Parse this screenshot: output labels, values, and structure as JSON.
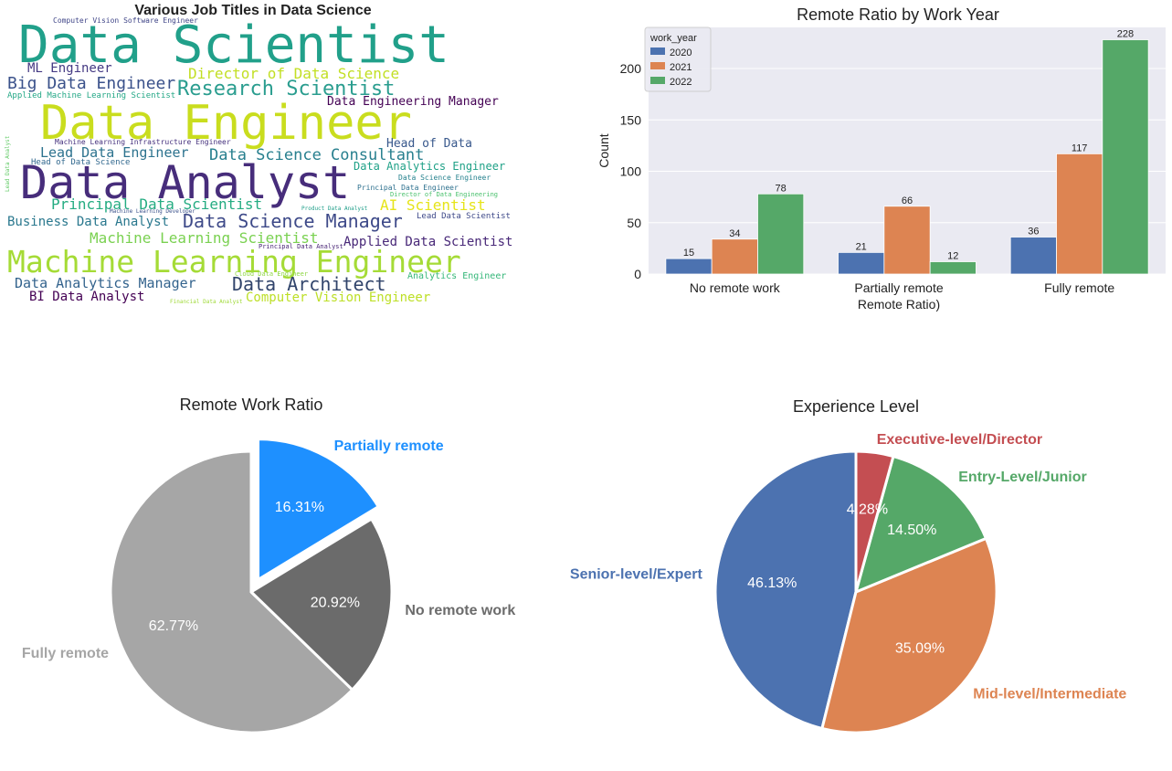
{
  "chart_data": [
    {
      "type": "wordcloud",
      "title": "Various Job Titles in Data Science",
      "words": [
        {
          "text": "Data Scientist",
          "color": "#21a08a"
        },
        {
          "text": "Data Engineer",
          "color": "#c9dd1e"
        },
        {
          "text": "Data Analyst",
          "color": "#472d7b"
        },
        {
          "text": "Machine Learning Engineer",
          "color": "#a5db36"
        },
        {
          "text": "Research Scientist",
          "color": "#2a9d8f"
        },
        {
          "text": "Data Science Manager",
          "color": "#3e4a89"
        },
        {
          "text": "Data Architect",
          "color": "#31446b"
        },
        {
          "text": "Big Data Engineer",
          "color": "#3b528b"
        },
        {
          "text": "Director of Data Science",
          "color": "#c2df23"
        },
        {
          "text": "Data Science Consultant",
          "color": "#277f8e"
        },
        {
          "text": "Principal Data Scientist",
          "color": "#25ac82"
        },
        {
          "text": "Machine Learning Scientist",
          "color": "#7ad151"
        },
        {
          "text": "Lead Data Engineer",
          "color": "#2c728e"
        },
        {
          "text": "Data Analytics Manager",
          "color": "#33638d"
        },
        {
          "text": "Computer Vision Engineer",
          "color": "#bddf26"
        },
        {
          "text": "BI Data Analyst",
          "color": "#440154"
        },
        {
          "text": "Business Data Analyst",
          "color": "#2a788e"
        },
        {
          "text": "Applied Data Scientist",
          "color": "#482878"
        },
        {
          "text": "ML Engineer",
          "color": "#443983"
        },
        {
          "text": "AI Scientist",
          "color": "#e6e419"
        },
        {
          "text": "Head of Data",
          "color": "#38588c"
        },
        {
          "text": "Data Engineering Manager",
          "color": "#440154"
        },
        {
          "text": "Data Analytics Engineer",
          "color": "#1fa187"
        },
        {
          "text": "Applied Machine Learning Scientist",
          "color": "#22a785"
        },
        {
          "text": "Computer Vision Software Engineer",
          "color": "#404688"
        },
        {
          "text": "Machine Learning Infrastructure Engineer",
          "color": "#46327e"
        },
        {
          "text": "Head of Data Science",
          "color": "#31688e"
        },
        {
          "text": "Lead Data Scientist",
          "color": "#3e4989"
        },
        {
          "text": "Analytics Engineer",
          "color": "#35b779"
        },
        {
          "text": "Principal Data Engineer",
          "color": "#2d708e"
        },
        {
          "text": "Data Science Engineer",
          "color": "#26828e"
        },
        {
          "text": "Director of Data Engineering",
          "color": "#4ac16d"
        },
        {
          "text": "Machine Learning Developer",
          "color": "#3b528b"
        },
        {
          "text": "Principal Data Analyst",
          "color": "#482475"
        },
        {
          "text": "Cloud Data Engineer",
          "color": "#8fd744"
        },
        {
          "text": "Financial Data Analyst",
          "color": "#a0da39"
        },
        {
          "text": "Product Data Analyst",
          "color": "#1f9e89"
        },
        {
          "text": "Lead Data Analyst",
          "color": "#5ec962"
        }
      ]
    },
    {
      "type": "bar",
      "title": "Remote Ratio by Work Year",
      "xlabel": "Partially remote\nRemote Ratio)",
      "ylabel": "Count",
      "categories": [
        "No remote work",
        "Partially remote",
        "Fully remote"
      ],
      "series": [
        {
          "name": "2020",
          "values": [
            15,
            21,
            36
          ],
          "color": "#4c72b0"
        },
        {
          "name": "2021",
          "values": [
            34,
            66,
            117
          ],
          "color": "#dd8452"
        },
        {
          "name": "2022",
          "values": [
            78,
            12,
            228
          ],
          "color": "#55a868"
        }
      ],
      "ylim": [
        0,
        240
      ],
      "yticks": [
        0,
        50,
        100,
        150,
        200
      ],
      "legend_title": "work_year",
      "legend_position": "top-left",
      "grid": true,
      "background": "#eaeaf2"
    },
    {
      "type": "pie",
      "title": "Remote Work Ratio",
      "slices": [
        {
          "label": "Fully remote",
          "value": 62.77,
          "pct": "62.77%",
          "color": "#a6a6a6",
          "explode": 0
        },
        {
          "label": "No remote work",
          "value": 20.92,
          "pct": "20.92%",
          "color": "#6b6b6b",
          "explode": 0
        },
        {
          "label": "Partially remote",
          "value": 16.31,
          "pct": "16.31%",
          "color": "#1e90ff",
          "explode": 0.1
        }
      ]
    },
    {
      "type": "pie",
      "title": "Experience Level",
      "slices": [
        {
          "label": "Executive-level/Director",
          "value": 4.28,
          "pct": "4.28%",
          "color": "#c44e52"
        },
        {
          "label": "Entry-Level/Junior",
          "value": 14.5,
          "pct": "14.50%",
          "color": "#55a868"
        },
        {
          "label": "Mid-level/Intermediate",
          "value": 35.09,
          "pct": "35.09%",
          "color": "#dd8452"
        },
        {
          "label": "Senior-level/Expert",
          "value": 46.13,
          "pct": "46.13%",
          "color": "#4c72b0"
        }
      ]
    }
  ]
}
